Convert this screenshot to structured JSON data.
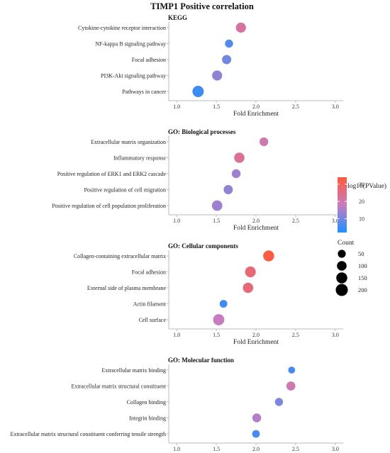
{
  "chart_data": {
    "type": "scatter",
    "title": "TIMP1 Positive correlation",
    "xlabel": "Fold Enrichment",
    "xlim": [
      0.9,
      3.1
    ],
    "xticks": [
      1.0,
      1.5,
      2.0,
      2.5,
      3.0
    ],
    "xtick_labels": [
      "1.0",
      "1.5",
      "2.0",
      "2.5",
      "3.0"
    ],
    "grid": false,
    "color_legend": {
      "title": "-log10(PValue)",
      "range": [
        2,
        34
      ],
      "ticks": [
        10,
        20,
        30
      ],
      "tick_labels": [
        "10",
        "20",
        "30"
      ],
      "low_color": "#1e90ff",
      "mid_color": "#c77cc0",
      "high_color": "#ff5a3c",
      "placement": "right"
    },
    "size_legend": {
      "title": "Count",
      "values": [
        50,
        100,
        150,
        200
      ],
      "labels": [
        "50",
        "100",
        "150",
        "200"
      ],
      "placement": "right"
    },
    "panels": [
      {
        "title": "KEGG",
        "points": [
          {
            "term": "Cytokine-cytokine receptor interaction",
            "fold": 1.81,
            "pval": 22,
            "count": 115
          },
          {
            "term": "NF-kappa B signaling pathway",
            "fold": 1.66,
            "pval": 7,
            "count": 55
          },
          {
            "term": "Focal adhesion",
            "fold": 1.63,
            "pval": 10,
            "count": 85
          },
          {
            "term": "PI3K-Akt signaling pathway",
            "fold": 1.51,
            "pval": 13,
            "count": 115
          },
          {
            "term": "Pathways in cancer",
            "fold": 1.27,
            "pval": 5,
            "count": 165
          }
        ]
      },
      {
        "title": "GO: Biological processes",
        "points": [
          {
            "term": "Extracellular matrix organization",
            "fold": 2.1,
            "pval": 20,
            "count": 70
          },
          {
            "term": "Inflammatory response",
            "fold": 1.79,
            "pval": 23,
            "count": 125
          },
          {
            "term": "Positive regulation of ERK1 and ERK2 cascade",
            "fold": 1.75,
            "pval": 14,
            "count": 75
          },
          {
            "term": "Positive regulation of cell migration",
            "fold": 1.65,
            "pval": 13,
            "count": 85
          },
          {
            "term": "Positive regulation of cell population proliferation",
            "fold": 1.51,
            "pval": 14,
            "count": 130
          }
        ]
      },
      {
        "title": "GO: Cellular components",
        "points": [
          {
            "term": "Collagen-containing extracellular matrix",
            "fold": 2.16,
            "pval": 33,
            "count": 150
          },
          {
            "term": "Focal adhesion",
            "fold": 1.93,
            "pval": 27,
            "count": 140
          },
          {
            "term": "External side of plasma membrane",
            "fold": 1.9,
            "pval": 27,
            "count": 125
          },
          {
            "term": "Actin filament",
            "fold": 1.59,
            "pval": 5,
            "count": 45
          },
          {
            "term": "Cell surface",
            "fold": 1.53,
            "pval": 18,
            "count": 160
          }
        ]
      },
      {
        "title": "GO: Molecular function",
        "points": [
          {
            "term": "Extracellular matrix binding",
            "fold": 2.45,
            "pval": 6,
            "count": 30
          },
          {
            "term": "Extracellular matrix structural constituent",
            "fold": 2.44,
            "pval": 20,
            "count": 80
          },
          {
            "term": "Collagen binding",
            "fold": 2.29,
            "pval": 11,
            "count": 55
          },
          {
            "term": "Integrin binding",
            "fold": 2.01,
            "pval": 16,
            "count": 75
          },
          {
            "term": "Extracellular matrix structural constituent conferring tensile strength",
            "fold": 2.0,
            "pval": 6,
            "count": 45
          }
        ]
      }
    ]
  }
}
